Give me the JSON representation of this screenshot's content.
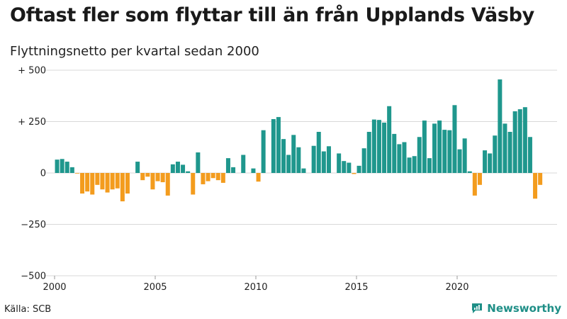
{
  "header": {
    "title": "Oftast fler som flyttar till än från Upplands Väsby",
    "subtitle": "Flyttningsnetto per kvartal sedan 2000"
  },
  "footer": {
    "source": "Källa: SCB",
    "brand": "Newsworthy"
  },
  "colors": {
    "positive": "#1f978d",
    "negative": "#f39c1e",
    "grid": "#d9d9d9"
  },
  "chart_data": {
    "type": "bar",
    "x_start": 2000,
    "periods_per_year": 4,
    "y_ticks": [
      500,
      250,
      0,
      -250,
      -500
    ],
    "y_tick_labels": [
      "+ 500",
      "+ 250",
      "0",
      "−250",
      "−500"
    ],
    "x_ticks": [
      2000,
      2005,
      2010,
      2015,
      2020
    ],
    "x_tick_labels": [
      "2000",
      "2005",
      "2010",
      "2015",
      "2020"
    ],
    "ylim": [
      -500,
      500
    ],
    "grid": true,
    "values": [
      65,
      68,
      55,
      28,
      -2,
      -100,
      -90,
      -105,
      -58,
      -80,
      -95,
      -80,
      -75,
      -138,
      -100,
      0,
      55,
      -35,
      -18,
      -80,
      -40,
      -45,
      -110,
      42,
      55,
      40,
      8,
      -105,
      100,
      -55,
      -40,
      -25,
      -35,
      -48,
      72,
      28,
      0,
      88,
      0,
      22,
      -42,
      208,
      0,
      262,
      272,
      165,
      88,
      185,
      125,
      22,
      0,
      132,
      200,
      105,
      130,
      0,
      95,
      58,
      50,
      -5,
      35,
      120,
      200,
      260,
      258,
      245,
      325,
      190,
      140,
      150,
      75,
      82,
      175,
      255,
      72,
      240,
      255,
      210,
      208,
      330,
      115,
      168,
      8,
      -110,
      -58,
      110,
      95,
      182,
      455,
      240,
      200,
      300,
      310,
      320,
      175,
      -125,
      -58
    ]
  }
}
